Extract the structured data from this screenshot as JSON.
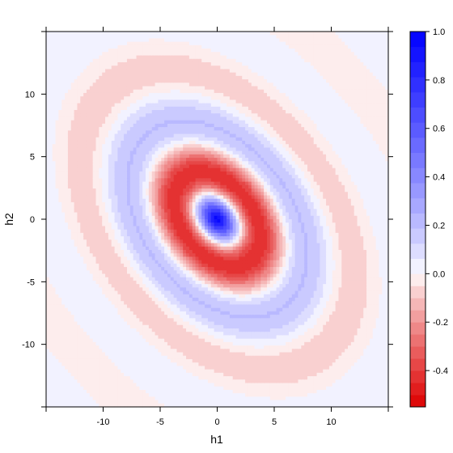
{
  "chart_data": {
    "type": "heatmap",
    "title": "",
    "xlabel": "h1",
    "ylabel": "h2",
    "xlim": [
      -15,
      15
    ],
    "ylim": [
      -15,
      15
    ],
    "x_ticks": [
      -10,
      -5,
      0,
      5,
      10
    ],
    "x_tick_labels": [
      "-10",
      "-5",
      "0",
      "5",
      "10"
    ],
    "y_ticks": [
      -10,
      -5,
      0,
      5,
      10
    ],
    "y_tick_labels": [
      "-10",
      "-5",
      "0",
      "5",
      "10"
    ],
    "colorbar": {
      "range": [
        -0.55,
        1.0
      ],
      "ticks": [
        -0.4,
        -0.2,
        0.0,
        0.2,
        0.4,
        0.6,
        0.8,
        1.0
      ],
      "tick_labels": [
        "-0.4",
        "-0.2",
        "0.0",
        "0.2",
        "0.4",
        "0.6",
        "0.8",
        "1.0"
      ],
      "low_color": "#dd0000",
      "mid_color": "#ffffff",
      "high_color": "#0000ff",
      "levels_below_zero": 11,
      "levels_above_zero": 16
    },
    "surface": {
      "description_of_values": "value at (h1,h2)",
      "peak": {
        "h1": 0,
        "h2": 0,
        "value": 1.0
      },
      "trough_points": [
        {
          "h1": -3,
          "h2": -3,
          "value": -0.5
        },
        {
          "h1": 3,
          "h2": 3,
          "value": -0.5
        }
      ],
      "pattern": "damped oscillating elliptical rings, elongated along h1 = -h2"
    },
    "grid": false,
    "legend": "colorbar-right"
  }
}
